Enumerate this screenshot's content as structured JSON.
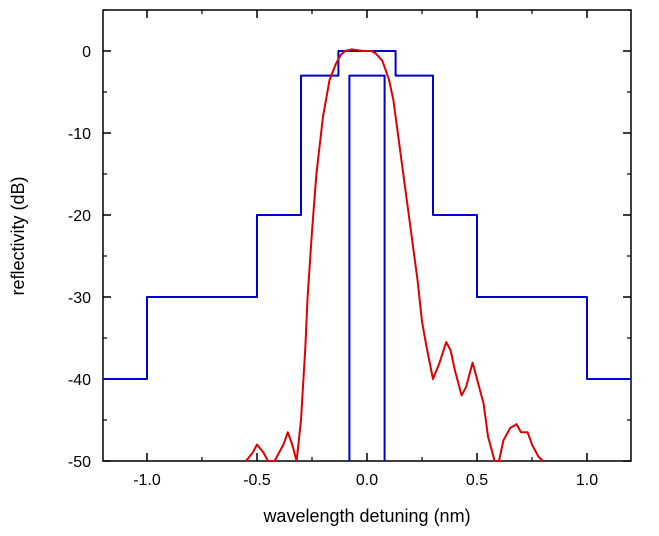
{
  "chart_data": {
    "type": "line",
    "title": "",
    "xlabel": "wavelength detuning (nm)",
    "ylabel": "reflectivity (dB)",
    "xlim": [
      -1.2,
      1.2
    ],
    "ylim": [
      -50,
      5
    ],
    "x_ticks": [
      -1.0,
      -0.5,
      0.0,
      0.5,
      1.0
    ],
    "x_tick_labels": [
      "-1.0",
      "-0.5",
      "0.0",
      "0.5",
      "1.0"
    ],
    "y_ticks": [
      0,
      -10,
      -20,
      -30,
      -40,
      -50
    ],
    "y_tick_labels": [
      "0",
      "-10",
      "-20",
      "-30",
      "-40",
      "-50"
    ],
    "grid": false,
    "legend": "none",
    "series": [
      {
        "color": "#0000cc",
        "x": [
          -1.2,
          -1.0,
          -1.0,
          -0.5,
          -0.5,
          -0.3,
          -0.3,
          -0.13,
          -0.13,
          0.13,
          0.13,
          0.3,
          0.3,
          0.5,
          0.5,
          1.0,
          1.0,
          1.2
        ],
        "y": [
          -40,
          -40,
          -30,
          -30,
          -20,
          -20,
          -3,
          -3,
          0,
          0,
          -3,
          -3,
          -20,
          -20,
          -30,
          -30,
          -40,
          -40
        ]
      },
      {
        "color": "#0000cc",
        "x": [
          -0.08,
          -0.08,
          0.08,
          0.08
        ],
        "y": [
          -50,
          -3,
          -3,
          -50
        ]
      },
      {
        "color": "#dd0000",
        "x": [
          -0.55,
          -0.52,
          -0.5,
          -0.47,
          -0.45,
          -0.42,
          -0.38,
          -0.36,
          -0.34,
          -0.32,
          -0.3,
          -0.28,
          -0.27,
          -0.25,
          -0.23,
          -0.2,
          -0.17,
          -0.14,
          -0.12,
          -0.1,
          -0.07,
          -0.04,
          -0.02,
          0.0,
          0.02,
          0.04,
          0.07,
          0.1,
          0.12,
          0.14,
          0.17,
          0.2,
          0.23,
          0.25,
          0.27,
          0.3,
          0.33,
          0.36,
          0.38,
          0.4,
          0.43,
          0.45,
          0.48,
          0.5,
          0.53,
          0.55,
          0.58,
          0.6,
          0.62,
          0.65,
          0.68,
          0.7,
          0.73,
          0.75,
          0.78,
          0.8
        ],
        "y": [
          -50,
          -49,
          -48,
          -49,
          -50,
          -50,
          -48,
          -46.5,
          -48,
          -50,
          -45,
          -36,
          -30,
          -22,
          -15,
          -8,
          -3.5,
          -1.5,
          -0.5,
          0.0,
          0.2,
          0.1,
          0.0,
          0.0,
          0.0,
          -0.3,
          -1.2,
          -3.5,
          -6,
          -10,
          -16,
          -22,
          -28,
          -33,
          -36,
          -40,
          -38,
          -35.5,
          -36.5,
          -39,
          -42,
          -41,
          -38,
          -40,
          -43,
          -47,
          -50,
          -50,
          -47.5,
          -46,
          -45.5,
          -46.5,
          -46.5,
          -48,
          -49.5,
          -50
        ]
      }
    ]
  }
}
